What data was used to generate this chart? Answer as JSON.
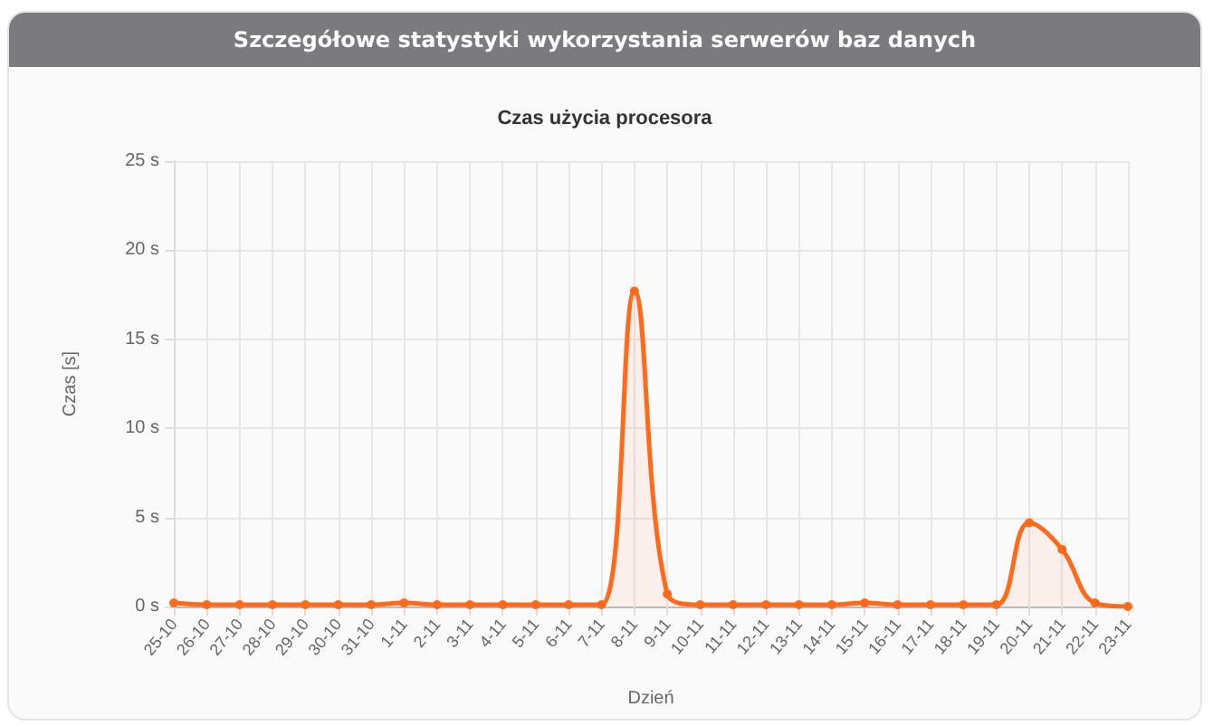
{
  "chart_data": {
    "type": "area",
    "title": "Szczegółowe statystyki wykorzystania serwerów baz danych",
    "subtitle": "Czas użycia procesora",
    "xlabel": "Dzień",
    "ylabel": "Czas [s]",
    "categories": [
      "25-10",
      "26-10",
      "27-10",
      "28-10",
      "29-10",
      "30-10",
      "31-10",
      "1-11",
      "2-11",
      "3-11",
      "4-11",
      "5-11",
      "6-11",
      "7-11",
      "8-11",
      "9-11",
      "10-11",
      "11-11",
      "12-11",
      "13-11",
      "14-11",
      "15-11",
      "16-11",
      "17-11",
      "18-11",
      "19-11",
      "20-11",
      "21-11",
      "22-11",
      "23-11"
    ],
    "series": [
      {
        "color": "#ff6a1a",
        "values": [
          0.2,
          0.1,
          0.1,
          0.1,
          0.1,
          0.1,
          0.1,
          0.2,
          0.1,
          0.1,
          0.1,
          0.1,
          0.1,
          0.1,
          17.7,
          0.7,
          0.1,
          0.1,
          0.1,
          0.1,
          0.1,
          0.2,
          0.1,
          0.1,
          0.1,
          0.1,
          4.7,
          3.2,
          0.2,
          0.0
        ]
      }
    ],
    "ylim": [
      0,
      25
    ],
    "yticks": [
      {
        "value": 0,
        "label": "0 s"
      },
      {
        "value": 5,
        "label": "5 s"
      },
      {
        "value": 10,
        "label": "10 s"
      },
      {
        "value": 15,
        "label": "15 s"
      },
      {
        "value": 20,
        "label": "20 s"
      },
      {
        "value": 25,
        "label": "25 s"
      }
    ],
    "grid": true,
    "marker": "circle",
    "line_style": "solid"
  }
}
